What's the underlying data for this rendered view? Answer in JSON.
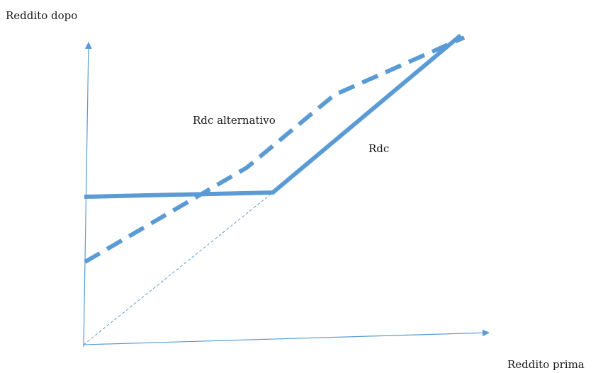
{
  "labels": {
    "y_axis": "Reddito dopo",
    "x_axis": "Reddito prima",
    "rdc": "Rdc",
    "rdc_alternativo": "Rdc alternativo"
  },
  "colors": {
    "line": "#5b9bd5"
  }
}
